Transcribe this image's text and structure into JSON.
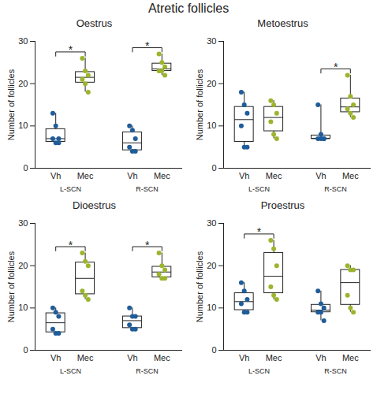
{
  "title": "Atretic follicles",
  "chart_data": [
    {
      "type": "box",
      "title": "Oestrus",
      "y_label": "Number of follicles",
      "ylim": [
        0,
        30
      ],
      "yticks": [
        0,
        10,
        20,
        30
      ],
      "grid": false,
      "groups": [
        {
          "name": "L-SCN",
          "significance": "*",
          "series": [
            {
              "name": "Vh",
              "color": "#1f5c99",
              "values": [
                13,
                10,
                7,
                7,
                6,
                6
              ]
            },
            {
              "name": "Mec",
              "color": "#9bb52c",
              "values": [
                26,
                23,
                22,
                21,
                20,
                18
              ]
            }
          ]
        },
        {
          "name": "R-SCN",
          "significance": "*",
          "series": [
            {
              "name": "Vh",
              "color": "#1f5c99",
              "values": [
                10,
                9,
                7,
                5,
                4,
                4
              ]
            },
            {
              "name": "Mec",
              "color": "#9bb52c",
              "values": [
                27,
                25,
                24,
                23,
                23,
                22
              ]
            }
          ]
        }
      ]
    },
    {
      "type": "box",
      "title": "Metoestrus",
      "y_label": "Number of follicles",
      "ylim": [
        0,
        30
      ],
      "yticks": [
        0,
        10,
        20,
        30
      ],
      "grid": false,
      "groups": [
        {
          "name": "L-SCN",
          "series": [
            {
              "name": "Vh",
              "color": "#1f5c99",
              "values": [
                18,
                15,
                13,
                10,
                5,
                5
              ]
            },
            {
              "name": "Mec",
              "color": "#9bb52c",
              "values": [
                16,
                15,
                13,
                11,
                8,
                7
              ]
            }
          ]
        },
        {
          "name": "R-SCN",
          "significance": "*",
          "series": [
            {
              "name": "Vh",
              "color": "#1f5c99",
              "values": [
                15,
                8,
                7,
                7,
                7,
                7
              ]
            },
            {
              "name": "Mec",
              "color": "#9bb52c",
              "values": [
                22,
                17,
                15,
                14,
                13,
                12
              ]
            }
          ]
        }
      ]
    },
    {
      "type": "box",
      "title": "Dioestrus",
      "y_label": "Number of follicles",
      "ylim": [
        0,
        30
      ],
      "yticks": [
        0,
        10,
        20,
        30
      ],
      "grid": false,
      "groups": [
        {
          "name": "L-SCN",
          "significance": "*",
          "series": [
            {
              "name": "Vh",
              "color": "#1f5c99",
              "values": [
                10,
                9,
                8,
                5,
                4,
                4
              ]
            },
            {
              "name": "Mec",
              "color": "#9bb52c",
              "values": [
                23,
                21,
                20,
                14,
                13,
                12
              ]
            }
          ]
        },
        {
          "name": "R-SCN",
          "significance": "*",
          "series": [
            {
              "name": "Vh",
              "color": "#1f5c99",
              "values": [
                10,
                8,
                8,
                6,
                5,
                5
              ]
            },
            {
              "name": "Mec",
              "color": "#9bb52c",
              "values": [
                23,
                20,
                19,
                18,
                17,
                17
              ]
            }
          ]
        }
      ]
    },
    {
      "type": "box",
      "title": "Proestrus",
      "y_label": "Number of follicles",
      "ylim": [
        0,
        30
      ],
      "yticks": [
        0,
        10,
        20,
        30
      ],
      "grid": false,
      "groups": [
        {
          "name": "L-SCN",
          "significance": "*",
          "series": [
            {
              "name": "Vh",
              "color": "#1f5c99",
              "values": [
                16,
                14,
                12,
                11,
                9,
                9
              ]
            },
            {
              "name": "Mec",
              "color": "#9bb52c",
              "values": [
                26,
                24,
                20,
                15,
                13,
                12
              ]
            }
          ]
        },
        {
          "name": "R-SCN",
          "series": [
            {
              "name": "Vh",
              "color": "#1f5c99",
              "values": [
                14,
                11,
                10,
                9,
                9,
                7
              ]
            },
            {
              "name": "Mec",
              "color": "#9bb52c",
              "values": [
                20,
                19,
                19,
                13,
                10,
                9
              ]
            }
          ]
        }
      ]
    }
  ]
}
